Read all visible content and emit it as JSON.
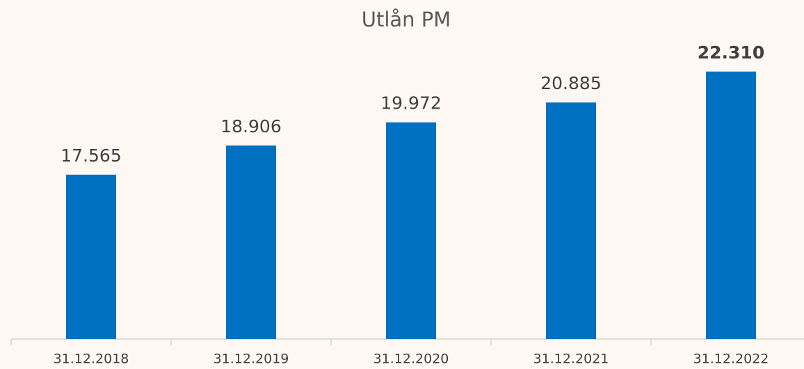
{
  "chart_data": {
    "type": "bar",
    "title": "Utlån PM",
    "categories": [
      "31.12.2018",
      "31.12.2019",
      "31.12.2020",
      "31.12.2021",
      "31.12.2022"
    ],
    "values": [
      17565,
      18906,
      19972,
      20885,
      22310
    ],
    "value_labels": [
      "17.565",
      "18.906",
      "19.972",
      "20.885",
      "22.310"
    ],
    "bold_labels": [
      false,
      false,
      false,
      false,
      true
    ],
    "color": "#0070c0",
    "ylim": [
      10000,
      24000
    ]
  }
}
